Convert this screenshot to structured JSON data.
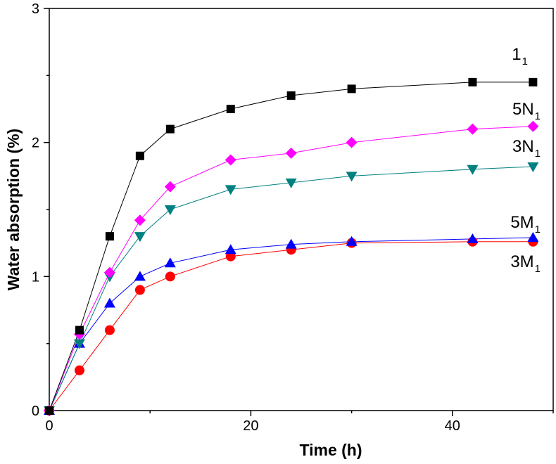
{
  "chart_data": {
    "type": "line",
    "title": "",
    "xlabel": "Time (h)",
    "ylabel": "Water absorption (%)",
    "xlim": [
      0,
      50
    ],
    "ylim": [
      0,
      3
    ],
    "xticks": [
      0,
      20,
      40
    ],
    "yticks": [
      0,
      1,
      2,
      3
    ],
    "grid": false,
    "legend": "none",
    "series": [
      {
        "name": "1",
        "name_sub": "1",
        "color": "#000000",
        "marker": "square",
        "x": [
          0,
          3,
          6,
          9,
          12,
          18,
          24,
          30,
          42,
          48
        ],
        "y": [
          0,
          0.6,
          1.3,
          1.9,
          2.1,
          2.25,
          2.35,
          2.4,
          2.45,
          2.45
        ]
      },
      {
        "name": "5N",
        "name_sub": "1",
        "color": "#ff00ff",
        "marker": "diamond",
        "x": [
          0,
          3,
          6,
          9,
          12,
          18,
          24,
          30,
          42,
          48
        ],
        "y": [
          0,
          0.57,
          1.03,
          1.42,
          1.67,
          1.87,
          1.92,
          2.0,
          2.1,
          2.12
        ]
      },
      {
        "name": "3N",
        "name_sub": "1",
        "color": "#008080",
        "marker": "triangle-down",
        "x": [
          0,
          3,
          6,
          9,
          12,
          18,
          24,
          30,
          42,
          48
        ],
        "y": [
          0,
          0.5,
          1.0,
          1.3,
          1.5,
          1.65,
          1.7,
          1.75,
          1.8,
          1.82
        ]
      },
      {
        "name": "5M",
        "name_sub": "1",
        "color": "#0000ff",
        "marker": "triangle-up",
        "x": [
          0,
          3,
          6,
          9,
          12,
          18,
          24,
          30,
          42,
          48
        ],
        "y": [
          0,
          0.5,
          0.8,
          1.0,
          1.1,
          1.2,
          1.24,
          1.26,
          1.28,
          1.29
        ]
      },
      {
        "name": "3M",
        "name_sub": "1",
        "color": "#ff0000",
        "marker": "circle",
        "x": [
          0,
          3,
          6,
          9,
          12,
          18,
          24,
          30,
          42,
          48
        ],
        "y": [
          0,
          0.3,
          0.6,
          0.9,
          1.0,
          1.15,
          1.2,
          1.25,
          1.26,
          1.26
        ]
      }
    ]
  }
}
